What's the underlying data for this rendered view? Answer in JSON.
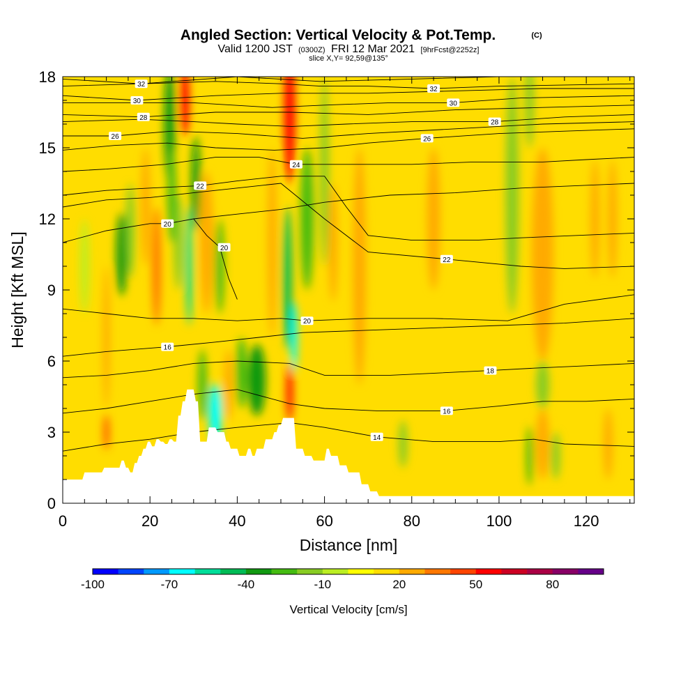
{
  "header": {
    "title": "Angled Section: Vertical Velocity & Pot.Temp.",
    "title_units": "(C)",
    "valid_prefix": "Valid 1200 JST",
    "valid_utc": "(0300Z)",
    "valid_date": "FRI 12 Mar 2021",
    "forecast": "[9hrFcst@2252z]",
    "slice": "slice X,Y= 92,59@135°"
  },
  "chart_data": {
    "type": "heatmap",
    "xlabel": "Distance [nm]",
    "ylabel": "Height [Kft MSL]",
    "xlim": [
      0,
      131
    ],
    "ylim": [
      0,
      18
    ],
    "x_ticks": [
      0,
      20,
      40,
      60,
      80,
      100,
      120
    ],
    "y_ticks": [
      0,
      3,
      6,
      9,
      12,
      15,
      18
    ],
    "colorbar": {
      "title": "Vertical Velocity [cm/s]",
      "levels": [
        -100,
        -90,
        -80,
        -70,
        -60,
        -50,
        -40,
        -30,
        -20,
        -10,
        0,
        10,
        20,
        30,
        40,
        50,
        60,
        70,
        80,
        90
      ],
      "tick_labels": [
        -100,
        -70,
        -40,
        -10,
        20,
        50,
        80
      ],
      "colors": [
        "#0000ff",
        "#0044ff",
        "#0099ff",
        "#00ffff",
        "#00dd99",
        "#00bb55",
        "#119911",
        "#44bb11",
        "#88cc22",
        "#bbee22",
        "#ffff00",
        "#ffdd00",
        "#ffaa00",
        "#ff7700",
        "#ff4400",
        "#ff0000",
        "#cc0022",
        "#aa0044",
        "#880066",
        "#660088"
      ]
    },
    "background_value": 10,
    "velocity_cells": [
      {
        "x": 5,
        "y": 10,
        "w": 2,
        "h": 4,
        "v": -10
      },
      {
        "x": 10,
        "y": 7,
        "w": 1.5,
        "h": 6,
        "v": 25
      },
      {
        "x": 10,
        "y": 3,
        "w": 1.2,
        "h": 1.5,
        "v": 45
      },
      {
        "x": 13.5,
        "y": 10.5,
        "w": 2.5,
        "h": 3.5,
        "v": -35
      },
      {
        "x": 15.5,
        "y": 11.5,
        "w": 2,
        "h": 4,
        "v": -15
      },
      {
        "x": 19,
        "y": 12.5,
        "w": 2,
        "h": 5,
        "v": 25
      },
      {
        "x": 21.5,
        "y": 10,
        "w": 2,
        "h": 5,
        "v": 30
      },
      {
        "x": 24.5,
        "y": 16,
        "w": 2.5,
        "h": 5,
        "v": -40
      },
      {
        "x": 25,
        "y": 13,
        "w": 2,
        "h": 4,
        "v": -25
      },
      {
        "x": 26.5,
        "y": 11,
        "w": 2,
        "h": 4,
        "v": -20
      },
      {
        "x": 28,
        "y": 17,
        "w": 2,
        "h": 3,
        "v": 55
      },
      {
        "x": 29,
        "y": 10,
        "w": 1.5,
        "h": 5,
        "v": -60
      },
      {
        "x": 30.5,
        "y": 13.5,
        "w": 2,
        "h": 4,
        "v": -35
      },
      {
        "x": 33,
        "y": 11,
        "w": 3,
        "h": 6,
        "v": 25
      },
      {
        "x": 36,
        "y": 10,
        "w": 2,
        "h": 4,
        "v": -30
      },
      {
        "x": 35,
        "y": 3.8,
        "w": 3,
        "h": 2.5,
        "v": -65
      },
      {
        "x": 32,
        "y": 5,
        "w": 2,
        "h": 3,
        "v": -30
      },
      {
        "x": 38,
        "y": 5,
        "w": 2,
        "h": 3,
        "v": 25
      },
      {
        "x": 41,
        "y": 5.5,
        "w": 2.5,
        "h": 3,
        "v": -30
      },
      {
        "x": 44.5,
        "y": 5.2,
        "w": 4,
        "h": 3,
        "v": -40
      },
      {
        "x": 48,
        "y": 11,
        "w": 2,
        "h": 8,
        "v": 25
      },
      {
        "x": 52,
        "y": 16.5,
        "w": 2.5,
        "h": 6,
        "v": 50
      },
      {
        "x": 51.5,
        "y": 9.5,
        "w": 2,
        "h": 6,
        "v": -45
      },
      {
        "x": 53,
        "y": 7,
        "w": 1.5,
        "h": 3,
        "v": -65
      },
      {
        "x": 52,
        "y": 4.7,
        "w": 1.5,
        "h": 2.5,
        "v": 55
      },
      {
        "x": 56,
        "y": 12,
        "w": 3,
        "h": 6,
        "v": -30
      },
      {
        "x": 60,
        "y": 14,
        "w": 2,
        "h": 8,
        "v": -15
      },
      {
        "x": 62,
        "y": 11,
        "w": 2,
        "h": 5,
        "v": 25
      },
      {
        "x": 68,
        "y": 10,
        "w": 3,
        "h": 10,
        "v": 25
      },
      {
        "x": 78,
        "y": 2.5,
        "w": 2,
        "h": 2,
        "v": -15
      },
      {
        "x": 85,
        "y": 12,
        "w": 3,
        "h": 6,
        "v": 20
      },
      {
        "x": 103,
        "y": 13,
        "w": 3,
        "h": 10,
        "v": -15
      },
      {
        "x": 107,
        "y": 17,
        "w": 2,
        "h": 4,
        "v": -20
      },
      {
        "x": 110,
        "y": 11.5,
        "w": 2.5,
        "h": 5,
        "v": 55
      },
      {
        "x": 110,
        "y": 10.5,
        "w": 5,
        "h": 9,
        "v": 25
      },
      {
        "x": 110,
        "y": 5,
        "w": 3,
        "h": 2,
        "v": -20
      },
      {
        "x": 107,
        "y": 2,
        "w": 1.5,
        "h": 2.5,
        "v": -30
      },
      {
        "x": 110,
        "y": 2.5,
        "w": 3,
        "h": 3,
        "v": 25
      },
      {
        "x": 113,
        "y": 2,
        "w": 2,
        "h": 2,
        "v": -15
      },
      {
        "x": 122,
        "y": 12,
        "w": 2,
        "h": 5,
        "v": 20
      },
      {
        "x": 126,
        "y": 12,
        "w": 2,
        "h": 5,
        "v": 25
      },
      {
        "x": 125,
        "y": 2.5,
        "w": 2,
        "h": 3,
        "v": 20
      }
    ],
    "terrain": {
      "x": [
        0,
        0.5,
        4.5,
        5,
        9,
        9.5,
        13,
        13.5,
        14,
        14.5,
        15,
        15.5,
        16,
        16.5,
        17,
        17.5,
        18,
        18.5,
        19,
        19.5,
        20,
        20.5,
        21,
        21.5,
        22,
        22.5,
        23,
        23.5,
        24,
        24.5,
        25,
        25.5,
        26,
        26.5,
        27,
        27.5,
        28,
        28.5,
        30,
        30.5,
        31,
        31.5,
        33,
        33.5,
        35,
        35.5,
        37,
        37.5,
        38,
        38.5,
        40,
        40.5,
        42,
        42.5,
        43,
        43.5,
        44,
        44.5,
        46,
        46.5,
        48,
        48.5,
        49,
        49.5,
        50,
        50.5,
        53,
        53.5,
        55,
        55.5,
        57,
        57.5,
        60,
        60.5,
        61,
        61.5,
        63,
        63.5,
        65,
        65.5,
        68,
        68.5,
        70,
        70.5,
        72,
        72.5,
        131
      ],
      "y": [
        1.0,
        1.0,
        1.0,
        1.3,
        1.3,
        1.5,
        1.5,
        1.8,
        1.8,
        1.5,
        1.5,
        1.3,
        1.3,
        1.7,
        1.7,
        2.0,
        2.0,
        2.3,
        2.3,
        2.6,
        2.6,
        2.4,
        2.4,
        2.7,
        2.7,
        2.6,
        2.6,
        2.5,
        2.5,
        2.7,
        2.7,
        2.6,
        2.6,
        3.7,
        3.7,
        4.3,
        4.3,
        4.8,
        4.8,
        4.3,
        4.3,
        2.6,
        2.6,
        3.2,
        3.2,
        3.0,
        3.0,
        2.6,
        2.6,
        2.3,
        2.3,
        2.0,
        2.0,
        2.3,
        2.3,
        2.0,
        2.0,
        2.3,
        2.3,
        2.7,
        2.7,
        3.0,
        3.0,
        3.3,
        3.3,
        3.6,
        3.6,
        2.3,
        2.3,
        2.0,
        2.0,
        1.8,
        1.8,
        2.3,
        2.3,
        2.0,
        2.0,
        1.6,
        1.6,
        1.3,
        1.3,
        0.8,
        0.8,
        0.5,
        0.5,
        0.3,
        0.3
      ]
    },
    "contours": [
      {
        "level": 14,
        "label": "14",
        "label_x": 72,
        "label_y": 2.8,
        "x": [
          0,
          10,
          20,
          30,
          40,
          52,
          60,
          72,
          85,
          100,
          108,
          115,
          131
        ],
        "y": [
          2.2,
          2.5,
          2.7,
          3.0,
          3.2,
          3.4,
          3.2,
          2.8,
          2.6,
          2.6,
          2.7,
          2.5,
          2.4
        ]
      },
      {
        "level": 16,
        "label": "16",
        "label_x": 88,
        "label_y": 3.9,
        "x": [
          0,
          10,
          20,
          30,
          40,
          52,
          60,
          72,
          88,
          100,
          110,
          120,
          131
        ],
        "y": [
          3.8,
          4.0,
          4.3,
          4.6,
          4.8,
          4.2,
          4.0,
          3.9,
          3.9,
          4.1,
          4.3,
          4.3,
          4.4
        ]
      },
      {
        "level": 16.5,
        "label": "16",
        "label_x": 24,
        "label_y": 6.6,
        "x": [
          0,
          10,
          24,
          35,
          45,
          55,
          70,
          85,
          100,
          115,
          131
        ],
        "y": [
          6.2,
          6.4,
          6.6,
          6.8,
          7.0,
          7.2,
          7.3,
          7.4,
          7.5,
          7.6,
          7.8
        ]
      },
      {
        "level": 18,
        "label": "18",
        "label_x": 98,
        "label_y": 5.6,
        "x": [
          0,
          10,
          20,
          30,
          40,
          52,
          60,
          75,
          98,
          108,
          120,
          131
        ],
        "y": [
          5.3,
          5.4,
          5.6,
          5.9,
          6.0,
          5.9,
          5.4,
          5.4,
          5.6,
          5.7,
          5.8,
          5.9
        ]
      },
      {
        "level": 20,
        "label": "20",
        "label_x": 56,
        "label_y": 7.7,
        "x": [
          0,
          10,
          20,
          30,
          40,
          50,
          56,
          70,
          85,
          102,
          115,
          131
        ],
        "y": [
          8.2,
          8.0,
          7.8,
          7.8,
          7.7,
          7.8,
          7.7,
          7.8,
          7.8,
          7.7,
          8.4,
          8.8
        ]
      },
      {
        "level": 20.5,
        "label": "20",
        "label_x": 24,
        "label_y": 11.8,
        "x": [
          0,
          10,
          20,
          24,
          30,
          40,
          50,
          60,
          75,
          90,
          105,
          131
        ],
        "y": [
          11.0,
          11.5,
          11.8,
          11.8,
          12.0,
          12.2,
          12.4,
          12.7,
          13.0,
          13.1,
          13.3,
          13.5
        ]
      },
      {
        "level": 21,
        "label": "20",
        "label_x": 37,
        "label_y": 10.8,
        "x": [
          30,
          33,
          36,
          38,
          40
        ],
        "y": [
          12.0,
          11.3,
          10.8,
          9.5,
          8.6
        ]
      },
      {
        "level": 22,
        "label": "22",
        "label_x": 88,
        "label_y": 10.3,
        "x": [
          0,
          10,
          20,
          30,
          40,
          50,
          60,
          70,
          88,
          105,
          115,
          131
        ],
        "y": [
          12.5,
          12.8,
          12.9,
          13.1,
          13.3,
          13.5,
          12.0,
          10.6,
          10.3,
          10.0,
          9.9,
          10.0
        ]
      },
      {
        "level": 22.5,
        "label": "22",
        "label_x": 31.5,
        "label_y": 13.4,
        "x": [
          0,
          10,
          20,
          31.5,
          40,
          50,
          60,
          65,
          70,
          80,
          95,
          105,
          131
        ],
        "y": [
          13.0,
          13.2,
          13.3,
          13.4,
          13.6,
          13.8,
          13.8,
          12.5,
          11.3,
          11.1,
          11.1,
          11.2,
          11.4
        ]
      },
      {
        "level": 24,
        "label": "24",
        "label_x": 53.5,
        "label_y": 14.3,
        "x": [
          0,
          10,
          23.5,
          35,
          45,
          53.5,
          65,
          80,
          94,
          110,
          120,
          131
        ],
        "y": [
          14.0,
          14.1,
          14.3,
          14.6,
          14.6,
          14.3,
          14.3,
          14.3,
          14.4,
          14.4,
          14.5,
          14.6
        ]
      },
      {
        "level": 26,
        "label": "26",
        "label_x": 83.5,
        "label_y": 15.4,
        "x": [
          0,
          12,
          24,
          35,
          48.5,
          60,
          70,
          83.5,
          100,
          115,
          131
        ],
        "y": [
          14.9,
          15.1,
          15.2,
          15.0,
          14.9,
          15.0,
          15.2,
          15.4,
          15.6,
          15.7,
          15.8
        ]
      },
      {
        "level": 26.5,
        "label": "26",
        "label_x": 12,
        "label_y": 15.5,
        "x": [
          0,
          12,
          25,
          40,
          55,
          70,
          90,
          110,
          131
        ],
        "y": [
          15.5,
          15.5,
          15.7,
          15.6,
          15.4,
          15.6,
          15.8,
          16.0,
          16.1
        ]
      },
      {
        "level": 28,
        "label": "28",
        "label_x": 99,
        "label_y": 16.1,
        "x": [
          0,
          18,
          30,
          40,
          52.5,
          65,
          80,
          99,
          115,
          131
        ],
        "y": [
          16.1,
          16.2,
          16.1,
          16.0,
          15.9,
          16.0,
          16.1,
          16.1,
          16.3,
          16.4
        ]
      },
      {
        "level": 28.5,
        "label": "28",
        "label_x": 18.5,
        "label_y": 16.3,
        "x": [
          0,
          18.5,
          35,
          52,
          70,
          90,
          110,
          131
        ],
        "y": [
          16.4,
          16.3,
          16.5,
          16.5,
          16.4,
          16.6,
          16.7,
          16.8
        ]
      },
      {
        "level": 30,
        "label": "30",
        "label_x": 89.5,
        "label_y": 16.9,
        "x": [
          0,
          17,
          30,
          48,
          60,
          75,
          89.5,
          105,
          131
        ],
        "y": [
          16.9,
          16.9,
          16.9,
          16.7,
          16.8,
          16.9,
          16.9,
          17.1,
          17.2
        ]
      },
      {
        "level": 30.5,
        "label": "30",
        "label_x": 17,
        "label_y": 17.0,
        "x": [
          0,
          17,
          35,
          50,
          70,
          90,
          110,
          131
        ],
        "y": [
          17.2,
          17.0,
          17.2,
          17.3,
          17.3,
          17.4,
          17.5,
          17.5
        ]
      },
      {
        "level": 32,
        "label": "32",
        "label_x": 85,
        "label_y": 17.5,
        "x": [
          0,
          18,
          35,
          50,
          59,
          70,
          85,
          100,
          131
        ],
        "y": [
          17.6,
          17.7,
          17.8,
          17.7,
          17.6,
          17.6,
          17.5,
          17.6,
          17.7
        ]
      },
      {
        "level": 32.5,
        "label": "32",
        "label_x": 18,
        "label_y": 17.7,
        "x": [
          0,
          18,
          40,
          59,
          80,
          100,
          131
        ],
        "y": [
          17.9,
          17.7,
          18.0,
          17.8,
          17.9,
          18.0,
          18.0
        ]
      }
    ]
  }
}
